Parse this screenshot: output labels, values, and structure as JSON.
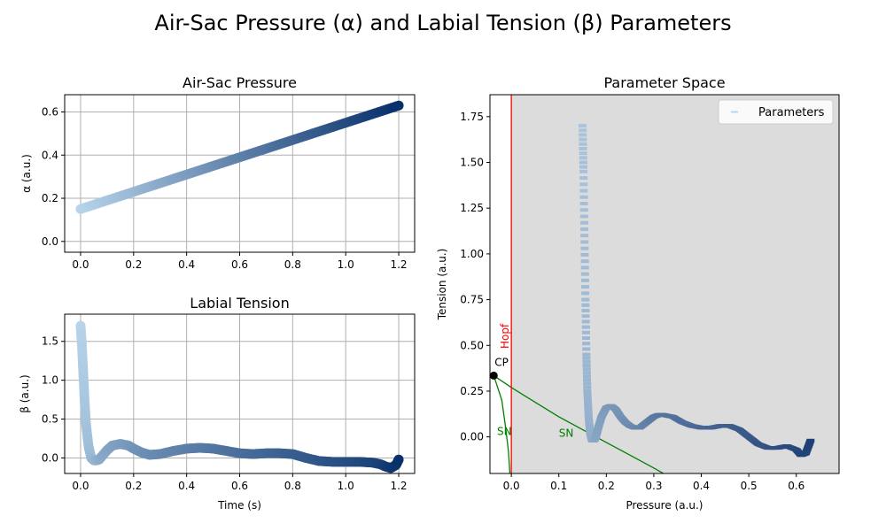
{
  "figure": {
    "title": "Air-Sac Pressure (α) and Labial Tension (β) Parameters"
  },
  "colors": {
    "light": "#b7d4ea",
    "dark": "#08306b",
    "hopf": "#ff0000",
    "sn": "#008000",
    "cp": "#000000",
    "shade": "#dcdcdc",
    "grid": "#b0b0b0",
    "param_light": "#a9c4dc",
    "param_dark": "#1e3f75"
  },
  "chart_data": [
    {
      "type": "scatter",
      "title": "Air-Sac Pressure",
      "xlabel": "",
      "ylabel": "α (a.u.)",
      "xlim": [
        -0.06,
        1.26
      ],
      "ylim": [
        -0.05,
        0.68
      ],
      "xticks": [
        "0.0",
        "0.2",
        "0.4",
        "0.6",
        "0.8",
        "1.0",
        "1.2"
      ],
      "yticks": [
        "0.0",
        "0.2",
        "0.4",
        "0.6"
      ],
      "grid": true,
      "series": [
        {
          "x": [
            0.0,
            0.1,
            0.2,
            0.3,
            0.4,
            0.5,
            0.6,
            0.7,
            0.8,
            0.9,
            1.0,
            1.1,
            1.2
          ],
          "y": [
            0.15,
            0.19,
            0.23,
            0.27,
            0.31,
            0.35,
            0.39,
            0.43,
            0.47,
            0.51,
            0.55,
            0.59,
            0.63
          ]
        }
      ]
    },
    {
      "type": "scatter",
      "title": "Labial Tension",
      "xlabel": "Time (s)",
      "ylabel": "β (a.u.)",
      "xlim": [
        -0.06,
        1.26
      ],
      "ylim": [
        -0.2,
        1.85
      ],
      "xticks": [
        "0.0",
        "0.2",
        "0.4",
        "0.6",
        "0.8",
        "1.0",
        "1.2"
      ],
      "yticks": [
        "0.0",
        "0.5",
        "1.0",
        "1.5"
      ],
      "grid": true,
      "series": [
        {
          "x": [
            0.0,
            0.005,
            0.01,
            0.015,
            0.02,
            0.03,
            0.04,
            0.05,
            0.06,
            0.07,
            0.08,
            0.1,
            0.12,
            0.15,
            0.18,
            0.2,
            0.23,
            0.26,
            0.3,
            0.35,
            0.4,
            0.45,
            0.5,
            0.55,
            0.6,
            0.65,
            0.7,
            0.75,
            0.8,
            0.85,
            0.9,
            0.95,
            1.0,
            1.05,
            1.1,
            1.13,
            1.15,
            1.17,
            1.19,
            1.2
          ],
          "y": [
            1.7,
            1.45,
            1.1,
            0.75,
            0.45,
            0.15,
            0.0,
            -0.03,
            -0.03,
            -0.02,
            0.02,
            0.1,
            0.16,
            0.18,
            0.16,
            0.12,
            0.07,
            0.04,
            0.05,
            0.09,
            0.12,
            0.13,
            0.12,
            0.09,
            0.06,
            0.05,
            0.06,
            0.06,
            0.05,
            0.0,
            -0.04,
            -0.05,
            -0.05,
            -0.05,
            -0.06,
            -0.08,
            -0.11,
            -0.13,
            -0.09,
            -0.02
          ]
        }
      ]
    },
    {
      "type": "scatter",
      "title": "Parameter Space",
      "xlabel": "Pressure (a.u.)",
      "ylabel": "Tension (a.u.)",
      "xlim": [
        -0.045,
        0.69
      ],
      "ylim": [
        -0.2,
        1.87
      ],
      "xticks": [
        "0.0",
        "0.1",
        "0.2",
        "0.3",
        "0.4",
        "0.5",
        "0.6"
      ],
      "yticks": [
        "0.00",
        "0.25",
        "0.50",
        "0.75",
        "1.00",
        "1.25",
        "1.50",
        "1.75"
      ],
      "grid": false,
      "legend": "top-right",
      "series": [
        {
          "name": "Parameters",
          "x": [
            0.15,
            0.152,
            0.154,
            0.156,
            0.158,
            0.16,
            0.163,
            0.166,
            0.17,
            0.174,
            0.178,
            0.183,
            0.19,
            0.2,
            0.21,
            0.22,
            0.23,
            0.24,
            0.25,
            0.26,
            0.27,
            0.28,
            0.29,
            0.3,
            0.31,
            0.32,
            0.34,
            0.36,
            0.38,
            0.4,
            0.42,
            0.44,
            0.46,
            0.48,
            0.5,
            0.52,
            0.54,
            0.56,
            0.58,
            0.6,
            0.61,
            0.62,
            0.63
          ],
          "y": [
            1.7,
            1.45,
            1.1,
            0.75,
            0.45,
            0.25,
            0.1,
            0.02,
            -0.02,
            -0.02,
            0.0,
            0.05,
            0.11,
            0.16,
            0.17,
            0.15,
            0.11,
            0.08,
            0.06,
            0.05,
            0.05,
            0.07,
            0.09,
            0.11,
            0.12,
            0.12,
            0.11,
            0.08,
            0.06,
            0.05,
            0.05,
            0.06,
            0.06,
            0.04,
            0.0,
            -0.04,
            -0.06,
            -0.06,
            -0.05,
            -0.07,
            -0.1,
            -0.09,
            -0.02
          ]
        }
      ],
      "annotations": {
        "hopf": {
          "label": "Hopf",
          "x": 0.0
        },
        "cp": {
          "label": "CP",
          "x": -0.037,
          "y": 0.335
        },
        "sn_left": {
          "label": "SN",
          "x": -0.03,
          "y": 0.01
        },
        "sn_right": {
          "label": "SN",
          "x": 0.1,
          "y": 0.0
        },
        "sn_left_curve": [
          [
            -0.037,
            0.335
          ],
          [
            -0.02,
            0.2
          ],
          [
            -0.012,
            0.05
          ],
          [
            -0.006,
            -0.08
          ],
          [
            -0.003,
            -0.2
          ]
        ],
        "sn_right_curve": [
          [
            -0.037,
            0.335
          ],
          [
            0.0,
            0.27
          ],
          [
            0.05,
            0.19
          ],
          [
            0.1,
            0.11
          ],
          [
            0.15,
            0.04
          ],
          [
            0.2,
            -0.03
          ],
          [
            0.25,
            -0.1
          ],
          [
            0.3,
            -0.17
          ],
          [
            0.32,
            -0.2
          ]
        ]
      }
    }
  ]
}
